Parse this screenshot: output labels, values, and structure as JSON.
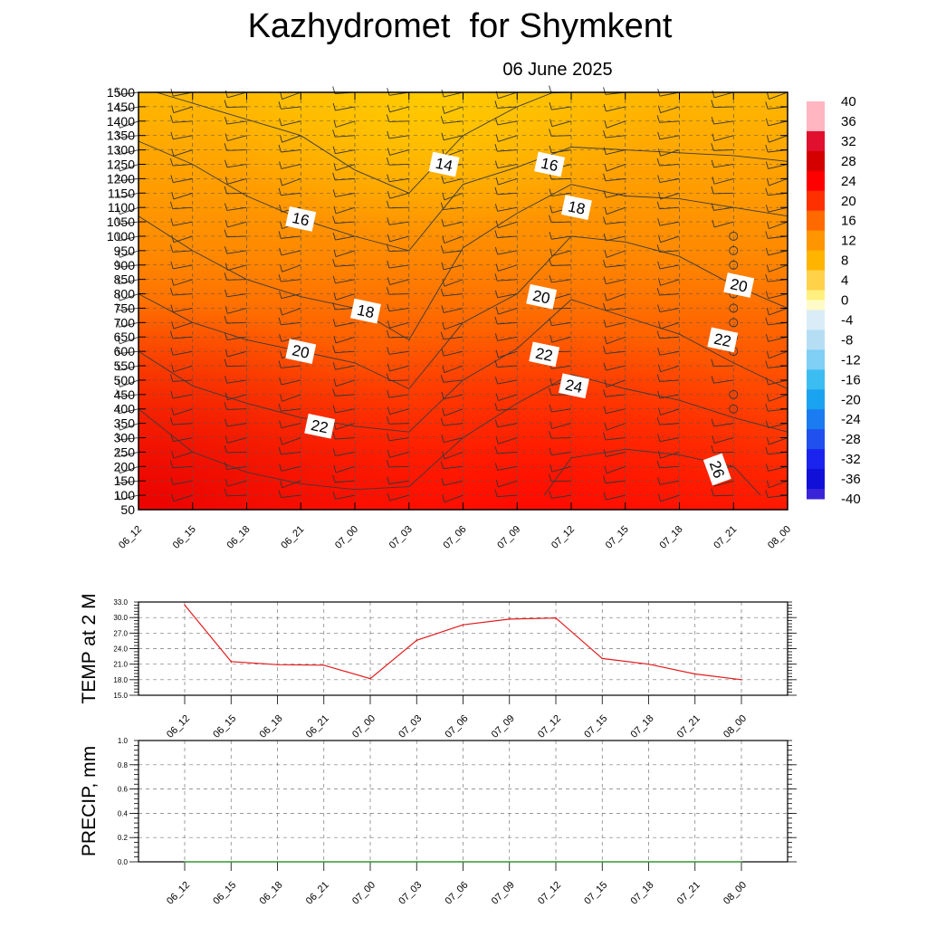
{
  "title": "Kazhydromet  for Shymkent",
  "subtitle": "06 June 2025",
  "chart_data": [
    {
      "type": "heatmap",
      "name": "cross-section",
      "x_ticks": [
        "06_12",
        "06_15",
        "06_18",
        "06_21",
        "07_00",
        "07_03",
        "07_06",
        "07_09",
        "07_12",
        "07_15",
        "07_18",
        "07_21",
        "08_00"
      ],
      "y_ticks": [
        50,
        100,
        150,
        200,
        250,
        300,
        350,
        400,
        450,
        500,
        550,
        600,
        650,
        700,
        750,
        800,
        850,
        900,
        950,
        1000,
        1050,
        1100,
        1150,
        1200,
        1250,
        1300,
        1350,
        1400,
        1450,
        1500
      ],
      "ylim": [
        50,
        1500
      ],
      "colorbar_labels": [
        40,
        36,
        32,
        28,
        24,
        20,
        16,
        12,
        8,
        4,
        0,
        -4,
        -8,
        -12,
        -16,
        -20,
        -24,
        -28,
        -32,
        -36,
        -40
      ],
      "contours": [
        {
          "value": 14,
          "points": [
            [
              0.33,
              1500
            ],
            [
              3,
              1350
            ],
            [
              4,
              1230
            ],
            [
              5,
              1150
            ],
            [
              6,
              1350
            ],
            [
              7,
              1450
            ],
            [
              7.67,
              1500
            ]
          ]
        },
        {
          "value": 16,
          "points": [
            [
              0,
              1330
            ],
            [
              1,
              1250
            ],
            [
              2,
              1140
            ],
            [
              3,
              1060
            ],
            [
              4,
              1000
            ],
            [
              5,
              950
            ],
            [
              6,
              1180
            ],
            [
              7,
              1240
            ],
            [
              8,
              1310
            ],
            [
              9,
              1300
            ],
            [
              10,
              1290
            ],
            [
              11,
              1280
            ],
            [
              12,
              1260
            ]
          ]
        },
        {
          "value": 18,
          "points": [
            [
              0,
              1070
            ],
            [
              1,
              950
            ],
            [
              2,
              850
            ],
            [
              3,
              790
            ],
            [
              4,
              750
            ],
            [
              5,
              640
            ],
            [
              6,
              960
            ],
            [
              7,
              1080
            ],
            [
              8,
              1180
            ],
            [
              9,
              1140
            ],
            [
              10,
              1130
            ],
            [
              11,
              1100
            ],
            [
              12,
              1070
            ]
          ]
        },
        {
          "value": 20,
          "points": [
            [
              0,
              800
            ],
            [
              1,
              700
            ],
            [
              2,
              640
            ],
            [
              3,
              600
            ],
            [
              4,
              560
            ],
            [
              5,
              470
            ],
            [
              6,
              700
            ],
            [
              7,
              800
            ],
            [
              8,
              1000
            ],
            [
              9,
              980
            ],
            [
              10,
              930
            ],
            [
              11,
              830
            ],
            [
              12,
              750
            ]
          ]
        },
        {
          "value": 22,
          "points": [
            [
              0,
              600
            ],
            [
              1,
              480
            ],
            [
              2,
              420
            ],
            [
              3,
              370
            ],
            [
              4,
              340
            ],
            [
              5,
              320
            ],
            [
              6,
              500
            ],
            [
              7,
              610
            ],
            [
              8,
              780
            ],
            [
              9,
              720
            ],
            [
              10,
              660
            ],
            [
              11,
              560
            ],
            [
              12,
              470
            ]
          ]
        },
        {
          "value": 24,
          "points": [
            [
              0,
              400
            ],
            [
              1,
              250
            ],
            [
              2,
              180
            ],
            [
              3,
              140
            ],
            [
              4,
              120
            ],
            [
              5,
              130
            ],
            [
              6,
              300
            ],
            [
              7,
              420
            ],
            [
              8,
              520
            ],
            [
              9,
              470
            ],
            [
              10,
              430
            ],
            [
              11,
              370
            ],
            [
              12,
              320
            ]
          ]
        },
        {
          "value": 26,
          "points": [
            [
              7.5,
              100
            ],
            [
              8,
              230
            ],
            [
              9,
              260
            ],
            [
              10,
              240
            ],
            [
              11,
              200
            ],
            [
              11.5,
              100
            ]
          ]
        }
      ],
      "contour_labels": [
        {
          "value": "14",
          "x": 5.65,
          "y": 1250
        },
        {
          "value": "16",
          "x": 7.6,
          "y": 1250
        },
        {
          "value": "16",
          "x": 3.0,
          "y": 1060
        },
        {
          "value": "18",
          "x": 8.1,
          "y": 1100
        },
        {
          "value": "20",
          "x": 11.1,
          "y": 830
        },
        {
          "value": "20",
          "x": 7.45,
          "y": 790
        },
        {
          "value": "18",
          "x": 4.2,
          "y": 740
        },
        {
          "value": "22",
          "x": 10.8,
          "y": 640
        },
        {
          "value": "20",
          "x": 3.0,
          "y": 600
        },
        {
          "value": "22",
          "x": 7.5,
          "y": 590
        },
        {
          "value": "24",
          "x": 8.05,
          "y": 480
        },
        {
          "value": "22",
          "x": 3.35,
          "y": 340
        },
        {
          "value": "26",
          "x": 10.7,
          "y": 190
        }
      ]
    },
    {
      "type": "line",
      "ylabel": "TEMP at 2 M",
      "categories": [
        "06_12",
        "06_15",
        "06_18",
        "06_21",
        "07_00",
        "07_03",
        "07_06",
        "07_09",
        "07_12",
        "07_15",
        "07_18",
        "07_21",
        "08_00"
      ],
      "values": [
        32.4,
        21.5,
        20.9,
        20.8,
        18.2,
        25.6,
        28.6,
        29.7,
        29.9,
        22.1,
        21.0,
        19.1,
        18.0
      ],
      "y_ticks": [
        "15.0",
        "18.0",
        "21.0",
        "24.0",
        "27.0",
        "30.0",
        "33.0"
      ],
      "ylim": [
        15,
        33
      ],
      "line_color": "#e41a1c"
    },
    {
      "type": "line",
      "ylabel": "PRECIP, mm",
      "categories": [
        "06_12",
        "06_15",
        "06_18",
        "06_21",
        "07_00",
        "07_03",
        "07_06",
        "07_09",
        "07_12",
        "07_15",
        "07_18",
        "07_21",
        "08_00"
      ],
      "values": [
        0,
        0,
        0,
        0,
        0,
        0,
        0,
        0,
        0,
        0,
        0,
        0,
        0
      ],
      "y_ticks": [
        "0.0",
        "0.2",
        "0.4",
        "0.6",
        "0.8",
        "1.0"
      ],
      "ylim": [
        0,
        1
      ],
      "line_color": "#2ca02c"
    }
  ]
}
